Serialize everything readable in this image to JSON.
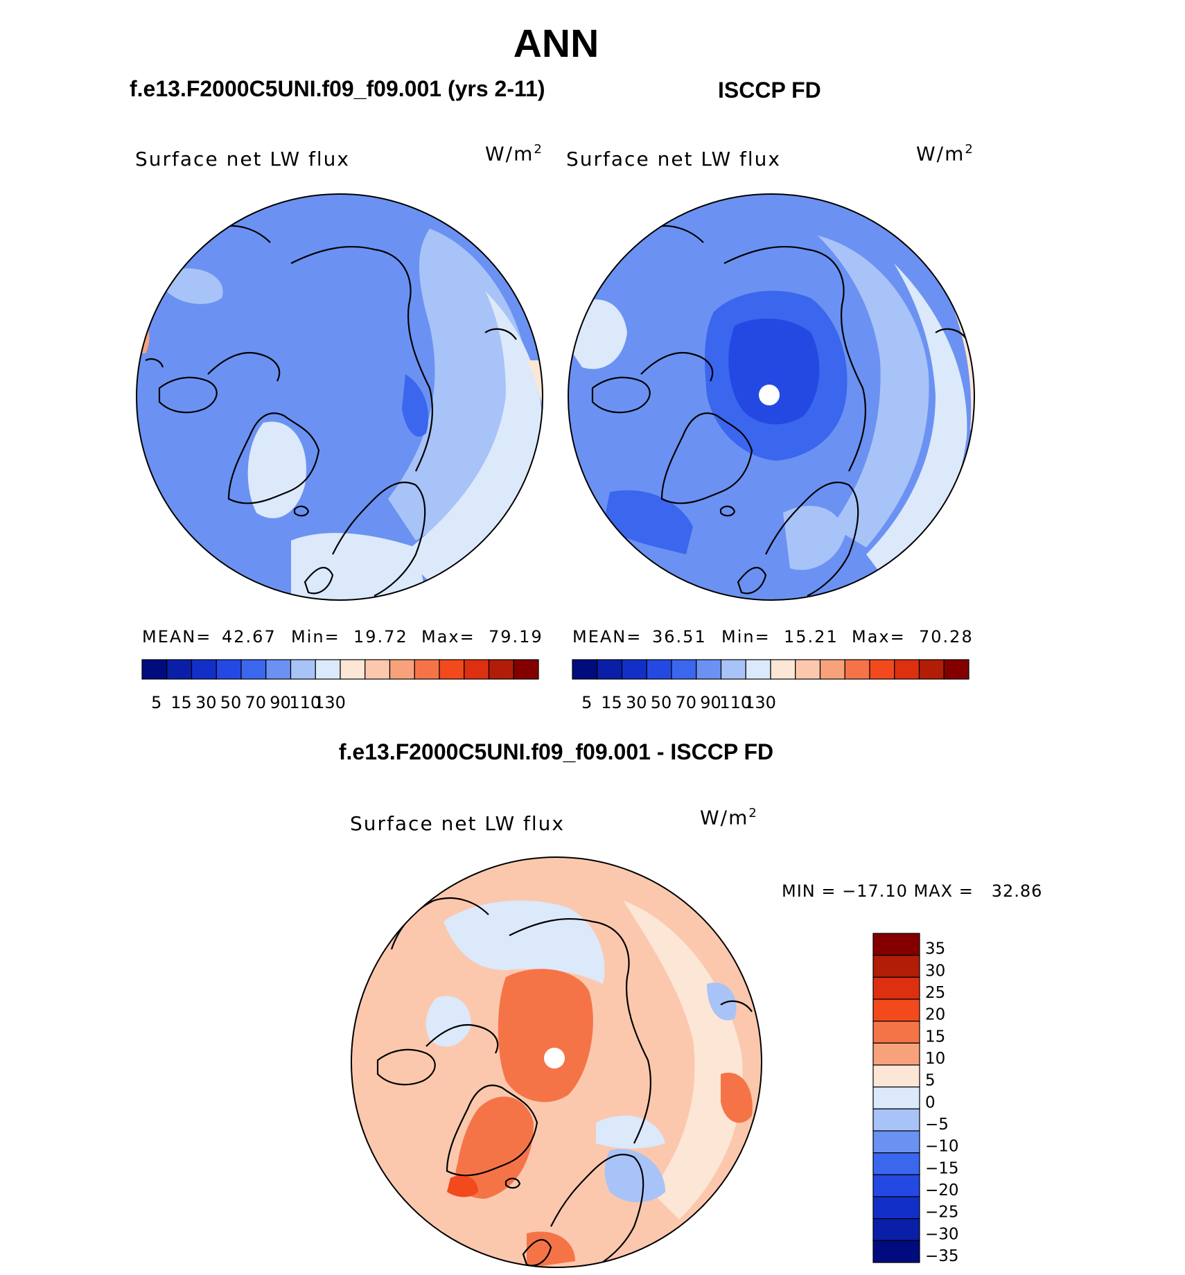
{
  "main_title": "ANN",
  "panels": [
    {
      "title": "f.e13.F2000C5UNI.f09_f09.001 (yrs 2-11)",
      "variable": "Surface net LW flux",
      "units": "W/m",
      "units_exp": "2",
      "stats": {
        "mean_label": "MEAN=",
        "mean": "42.67",
        "min_label": "Min=",
        "min": "19.72",
        "max_label": "Max=",
        "max": "79.19"
      }
    },
    {
      "title": "ISCCP FD",
      "variable": "Surface net LW flux",
      "units": "W/m",
      "units_exp": "2",
      "stats": {
        "mean_label": "MEAN=",
        "mean": "36.51",
        "min_label": "Min=",
        "min": "15.21",
        "max_label": "Max=",
        "max": "70.28"
      }
    }
  ],
  "diff_panel": {
    "title": "f.e13.F2000C5UNI.f09_f09.001 - ISCCP FD",
    "variable": "Surface net LW flux",
    "units": "W/m",
    "units_exp": "2",
    "minmax": "MIN = −17.10 MAX =   32.86"
  },
  "colorbar_flux": {
    "colors": [
      "#000c7d",
      "#0a1fa8",
      "#1230c8",
      "#2449e3",
      "#3b66ee",
      "#6b92f2",
      "#a8c3f7",
      "#dbe9fb",
      "#fce6d6",
      "#fbc8ae",
      "#f8a27c",
      "#f57447",
      "#f24a1c",
      "#dc3010",
      "#b21d08",
      "#840000"
    ],
    "tick_labels": [
      "5",
      "15",
      "30",
      "50",
      "70",
      "90",
      "110",
      "130"
    ]
  },
  "colorbar_diff": {
    "colors": [
      "#840000",
      "#b21d08",
      "#dc3010",
      "#f24a1c",
      "#f57447",
      "#f8a27c",
      "#fce6d6",
      "#dbe9fb",
      "#a8c3f7",
      "#6b92f2",
      "#3b66ee",
      "#2449e3",
      "#1230c8",
      "#0a1fa8",
      "#000c7d"
    ],
    "tick_labels": [
      "35",
      "30",
      "25",
      "20",
      "15",
      "10",
      "5",
      "0",
      "−5",
      "−10",
      "−15",
      "−20",
      "−25",
      "−30",
      "−35"
    ]
  },
  "map_colors": {
    "model_base": "#6b92f2",
    "obs_base": "#6b92f2",
    "diff_base": "#fbc8ae",
    "light_blue": "#a8c3f7",
    "pale_blue": "#dbe9fb",
    "mid_blue": "#3b66ee",
    "dark_blue": "#2449e3",
    "pale_orange": "#fce6d6",
    "orange": "#f8a27c",
    "deep_orange": "#f57447",
    "red_orange": "#f24a1c",
    "missing": "#ffffff",
    "coast": "#000000"
  }
}
